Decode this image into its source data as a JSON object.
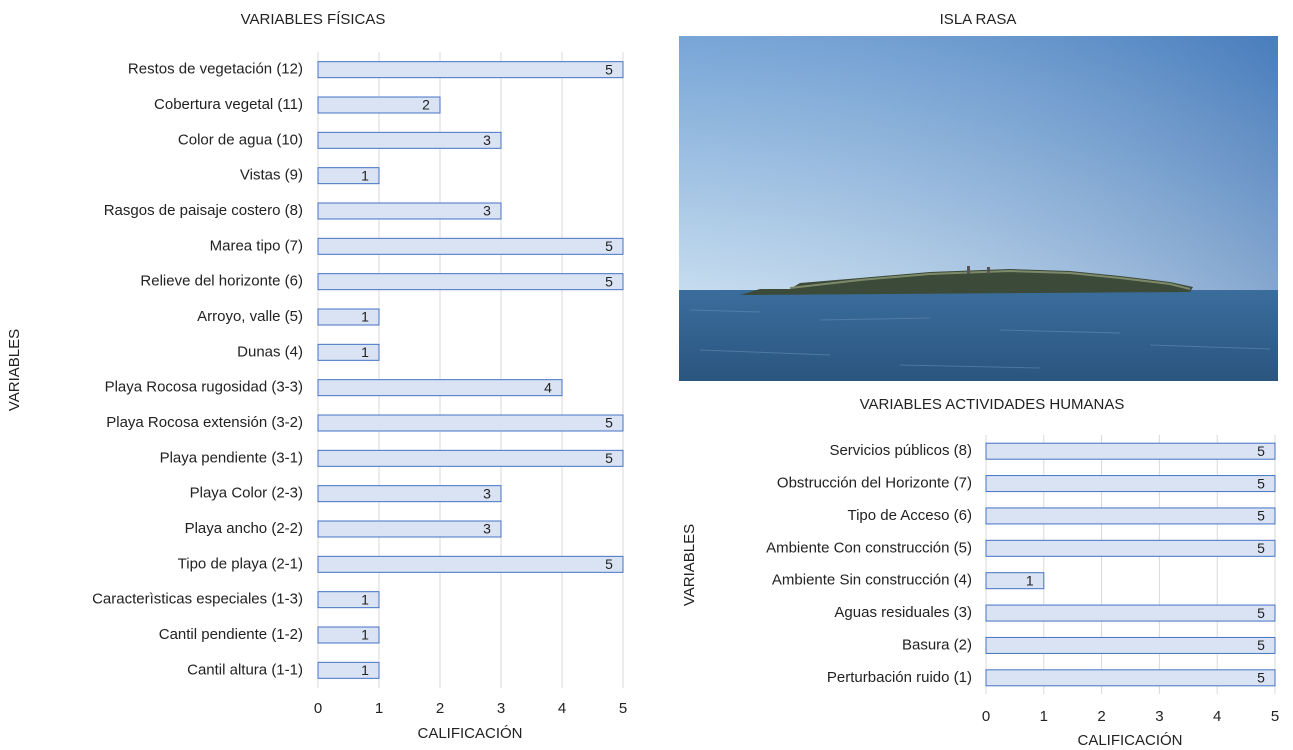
{
  "chart_data": [
    {
      "type": "barh",
      "title": "VARIABLES FÍSICAS",
      "x_label": "CALIFICACIÓN",
      "y_label": "VARIABLES",
      "categories": [
        "Restos de vegetación (12)",
        "Cobertura vegetal (11)",
        "Color de agua (10)",
        "Vistas (9)",
        "Rasgos de paisaje costero (8)",
        "Marea tipo (7)",
        "Relieve del horizonte (6)",
        "Arroyo, valle (5)",
        "Dunas (4)",
        "Playa Rocosa rugosidad (3-3)",
        "Playa Rocosa extensión (3-2)",
        "Playa pendiente (3-1)",
        "Playa Color (2-3)",
        "Playa ancho (2-2)",
        "Tipo de playa (2-1)",
        "Caracterìsticas especiales (1-3)",
        "Cantil pendiente (1-2)",
        "Cantil altura (1-1)"
      ],
      "values": [
        5,
        2,
        3,
        1,
        3,
        5,
        5,
        1,
        1,
        4,
        5,
        5,
        3,
        3,
        5,
        1,
        1,
        1
      ],
      "color": "#dae3f3",
      "edge_color": "#4472c4",
      "xlim": [
        0,
        5
      ],
      "xticks": [
        0,
        1,
        2,
        3,
        4,
        5
      ],
      "grid": true
    },
    {
      "type": "barh",
      "title": "VARIABLES ACTIVIDADES HUMANAS",
      "x_label": "CALIFICACIÓN",
      "y_label": "VARIABLES",
      "categories": [
        "Servicios públicos (8)",
        "Obstrucción del Horizonte (7)",
        "Tipo de Acceso (6)",
        "Ambiente Con construcción (5)",
        "Ambiente Sin construcción (4)",
        "Aguas residuales (3)",
        "Basura (2)",
        "Perturbación ruido (1)"
      ],
      "values": [
        5,
        5,
        5,
        5,
        1,
        5,
        5,
        5
      ],
      "color": "#dae3f3",
      "edge_color": "#4472c4",
      "xlim": [
        0,
        5
      ],
      "xticks": [
        0,
        1,
        2,
        3,
        4,
        5
      ],
      "grid": true
    }
  ],
  "photo": {
    "title": "ISLA RASA"
  }
}
